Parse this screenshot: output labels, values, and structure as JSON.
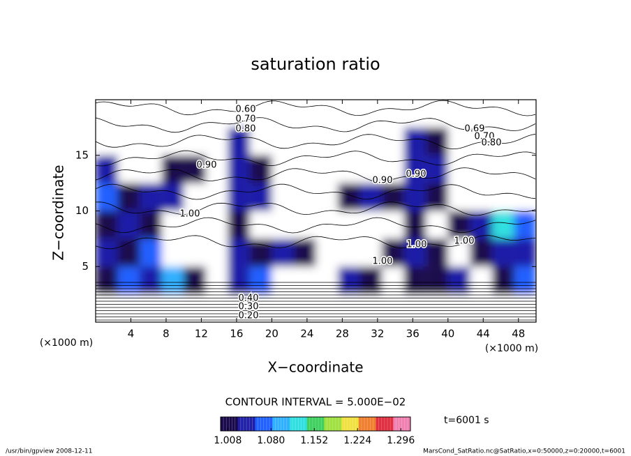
{
  "chart_data": {
    "type": "contour",
    "title": "saturation ratio",
    "xlabel": "X−coordinate",
    "ylabel": "Z−coordinate",
    "xunit": "(×1000 m)",
    "yunit": "(×1000 m)",
    "xlim": [
      0,
      50
    ],
    "ylim": [
      0,
      20
    ],
    "xticks": [
      4,
      8,
      12,
      16,
      20,
      24,
      28,
      32,
      36,
      40,
      44,
      48
    ],
    "yticks": [
      5,
      10,
      15
    ],
    "field": [
      [
        0.4,
        0.4,
        0.4,
        0.4,
        0.4,
        0.4,
        0.4,
        0.4,
        0.4,
        0.4,
        0.4,
        0.4,
        0.4,
        0.4,
        0.4,
        0.4,
        0.4,
        0.4,
        0.4,
        0.4
      ],
      [
        1.02,
        1.06,
        1.04,
        1.1,
        1.0,
        0.98,
        1.03,
        1.08,
        0.99,
        0.97,
        0.98,
        1.04,
        1.02,
        0.99,
        1.01,
        1.0,
        1.03,
        0.98,
        1.0,
        1.06
      ],
      [
        1.03,
        1.01,
        1.08,
        0.98,
        0.96,
        0.99,
        1.05,
        1.02,
        1.04,
        1.01,
        0.99,
        0.97,
        0.98,
        1.02,
        1.03,
        1.01,
        0.99,
        1.02,
        1.05,
        1.04
      ],
      [
        1.01,
        1.04,
        1.02,
        0.99,
        0.97,
        0.98,
        1.01,
        0.98,
        0.97,
        0.95,
        0.96,
        0.98,
        0.97,
        0.99,
        1.02,
        0.97,
        1.0,
        1.03,
        1.12,
        1.08
      ],
      [
        1.06,
        1.02,
        1.05,
        1.03,
        0.99,
        0.97,
        1.03,
        1.04,
        0.98,
        0.96,
        0.99,
        1.02,
        1.04,
        1.01,
        1.03,
        1.02,
        0.99,
        0.97,
        0.98,
        0.99
      ],
      [
        1.03,
        0.98,
        0.99,
        1.02,
        1.01,
        0.97,
        1.05,
        1.02,
        0.93,
        0.94,
        0.95,
        0.96,
        0.95,
        0.97,
        1.04,
        1.03,
        0.98,
        0.97,
        0.98,
        0.99
      ],
      [
        0.9,
        0.9,
        0.92,
        0.95,
        0.9,
        0.88,
        1.03,
        0.92,
        0.87,
        0.86,
        0.86,
        0.85,
        0.85,
        0.86,
        1.04,
        1.02,
        0.9,
        0.86,
        0.85,
        0.85
      ],
      [
        0.7,
        0.7,
        0.7,
        0.7,
        0.7,
        0.7,
        0.7,
        0.7,
        0.7,
        0.7,
        0.7,
        0.7,
        0.7,
        0.7,
        0.7,
        0.7,
        0.7,
        0.7,
        0.7,
        0.7
      ]
    ],
    "contour_labels": [
      "0.60",
      "0.70",
      "0.80",
      "0.90",
      "0.90",
      "0.90",
      "1.00",
      "1.00",
      "1.00",
      "1.00",
      "0.69",
      "0.70",
      "0.80",
      "0.20",
      "0.30",
      "0.40"
    ],
    "contour_interval": "CONTOUR INTERVAL = 5.000E−02",
    "clim": [
      0.996,
      1.312
    ],
    "cticks": [
      1.008,
      {
        "value": 1.08,
        "label": "1.080"
      },
      1.152,
      1.224,
      1.296
    ],
    "colormap": [
      "#1a0a4d",
      "#1f1fa8",
      "#2060ff",
      "#30b0ff",
      "#30e0e0",
      "#40d060",
      "#a0e040",
      "#f0e040",
      "#f08030",
      "#e03040",
      "#f080b0"
    ],
    "time": "t=6001 s",
    "footer_left": "/usr/bin/gpview   2008-12-11",
    "footer_right": "MarsCond_SatRatio.nc@SatRatio,x=0:50000,z=0:20000,t=6001"
  }
}
